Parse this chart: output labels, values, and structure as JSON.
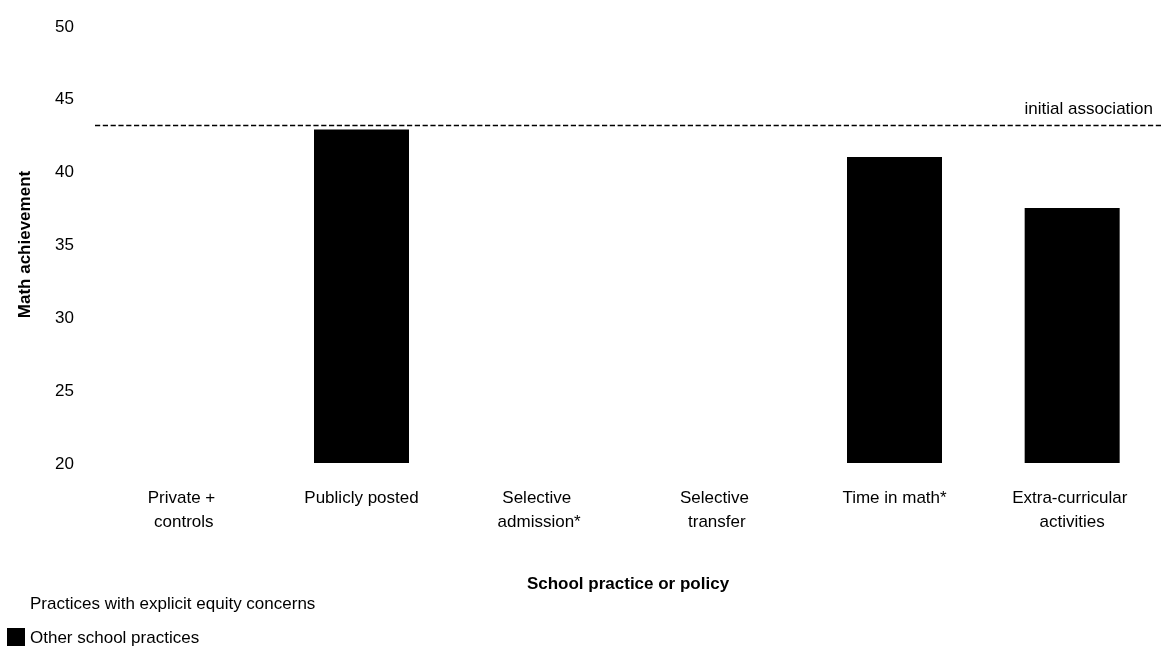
{
  "chart_data": {
    "type": "bar",
    "xlabel": "School practice or policy",
    "ylabel": "Math achievement",
    "categories": [
      "Private + controls",
      "Publicly posted",
      "Selective admission*",
      "Selective transfer",
      "Time in math*",
      "Extra-curricular activities"
    ],
    "series": [
      {
        "name": "Practices with explicit equity concerns",
        "values": [
          null,
          null,
          null,
          null,
          null,
          null
        ]
      },
      {
        "name": "Other school practices",
        "color": "#000000",
        "values": [
          null,
          42.9,
          null,
          null,
          41.0,
          37.5
        ]
      }
    ],
    "ylim": [
      20,
      50
    ],
    "yticks": [
      20,
      25,
      30,
      35,
      40,
      45,
      50
    ],
    "grid": false,
    "legend": "bottom left",
    "ref_lines": [
      {
        "axis": "y",
        "value": 43.2,
        "label": "initial association",
        "color": "#000000",
        "line_style": "dashed"
      }
    ]
  }
}
